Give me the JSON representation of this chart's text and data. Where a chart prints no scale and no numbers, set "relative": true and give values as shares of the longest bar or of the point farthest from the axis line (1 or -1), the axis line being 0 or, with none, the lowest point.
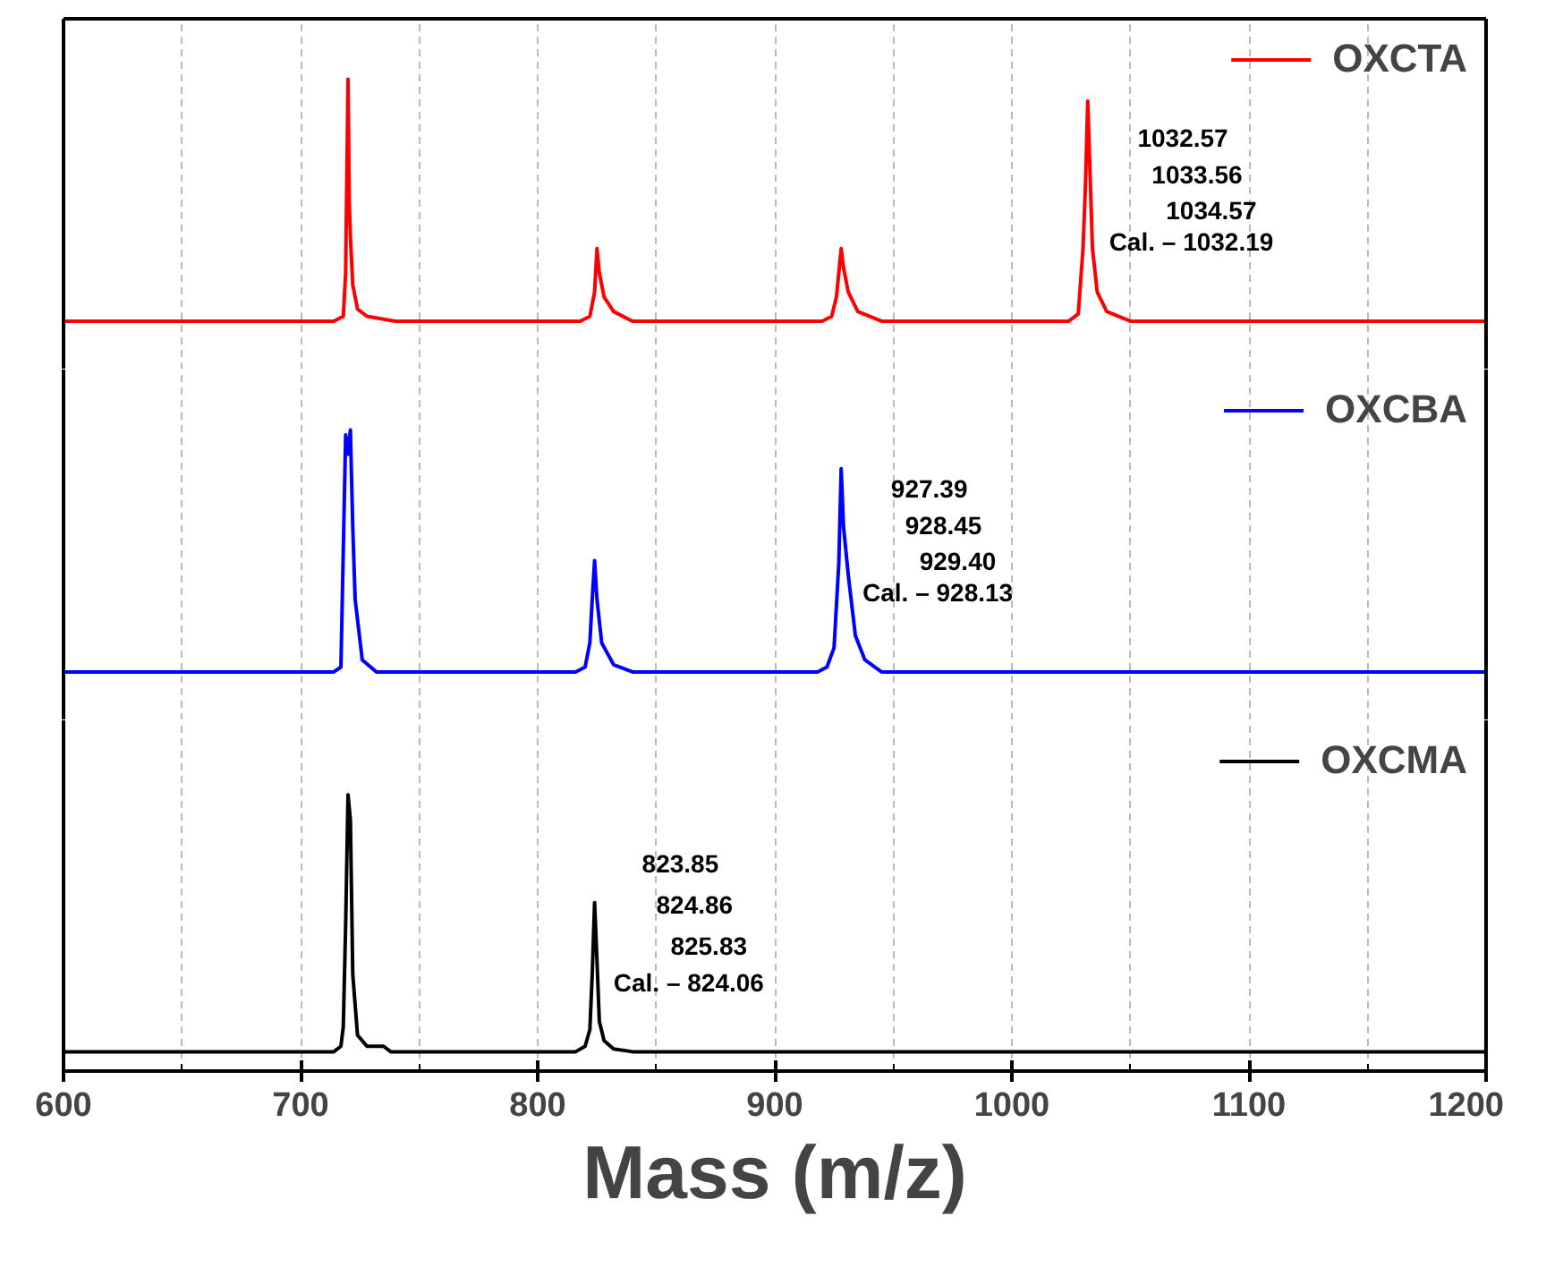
{
  "chart_data": [
    {
      "type": "line",
      "relative": true,
      "xlim": [
        600,
        1200
      ],
      "grid": "x",
      "legend": "top right",
      "tick_labels": false,
      "x": [
        600,
        700,
        714,
        718,
        719,
        720,
        720.5,
        721,
        722,
        724,
        728,
        740,
        818,
        822,
        824,
        825,
        826,
        828,
        832,
        840,
        920,
        924,
        926,
        928,
        929,
        931,
        935,
        945,
        1024,
        1028,
        1030,
        1031,
        1032,
        1033,
        1034,
        1036,
        1040,
        1050,
        1200
      ],
      "series": [
        {
          "name": "OXCTA",
          "color": "#ff0000",
          "values": [
            0,
            0,
            0,
            0.02,
            0.2,
            1,
            0.5,
            0.35,
            0.15,
            0.05,
            0.02,
            0,
            0,
            0.02,
            0.12,
            0.3,
            0.2,
            0.1,
            0.04,
            0,
            0,
            0.02,
            0.1,
            0.3,
            0.22,
            0.12,
            0.04,
            0,
            0,
            0.03,
            0.3,
            0.55,
            0.91,
            0.6,
            0.3,
            0.12,
            0.04,
            0,
            0
          ]
        }
      ],
      "annotations": [
        "1032.57",
        "1033.56",
        "1034.57",
        "Cal. – 1032.19"
      ]
    },
    {
      "type": "line",
      "relative": true,
      "xlim": [
        600,
        1200
      ],
      "grid": "x",
      "legend": "top right",
      "tick_labels": false,
      "x": [
        600,
        700,
        714,
        717,
        718,
        719,
        720,
        721,
        722,
        723,
        726,
        732,
        816,
        820,
        822,
        823,
        824,
        825,
        827,
        832,
        840,
        918,
        922,
        925,
        927,
        928,
        929,
        931,
        934,
        938,
        945,
        1200
      ],
      "series": [
        {
          "name": "OXCBA",
          "color": "#0000ff",
          "values": [
            0,
            0,
            0,
            0.02,
            0.5,
            0.98,
            0.9,
            1,
            0.6,
            0.3,
            0.05,
            0,
            0,
            0.02,
            0.12,
            0.3,
            0.46,
            0.3,
            0.12,
            0.03,
            0,
            0,
            0.02,
            0.1,
            0.45,
            0.84,
            0.6,
            0.4,
            0.15,
            0.05,
            0,
            0
          ]
        }
      ],
      "annotations": [
        "927.39",
        "928.45",
        "929.40",
        "Cal. – 928.13"
      ]
    },
    {
      "type": "line",
      "relative": true,
      "xlim": [
        600,
        1200
      ],
      "xticks": [
        600,
        700,
        800,
        900,
        1000,
        1100,
        1200
      ],
      "xlabel": "Mass (m/z)",
      "grid": "x",
      "legend": "top right",
      "tick_labels": "x",
      "x": [
        600,
        700,
        714,
        717,
        718,
        719,
        720,
        721,
        722,
        724,
        728,
        735,
        738,
        745,
        816,
        820,
        822,
        823,
        824,
        825,
        826,
        828,
        832,
        840,
        1200
      ],
      "series": [
        {
          "name": "OXCMA",
          "color": "#000000",
          "values": [
            0.07,
            0.07,
            0.07,
            0.09,
            0.16,
            0.53,
            1,
            0.91,
            0.35,
            0.13,
            0.09,
            0.09,
            0.07,
            0.07,
            0.07,
            0.09,
            0.15,
            0.35,
            0.61,
            0.4,
            0.18,
            0.11,
            0.08,
            0.07,
            0.07
          ]
        }
      ],
      "annotations": [
        "823.85",
        "824.86",
        "825.83",
        "Cal. – 824.06"
      ]
    }
  ]
}
